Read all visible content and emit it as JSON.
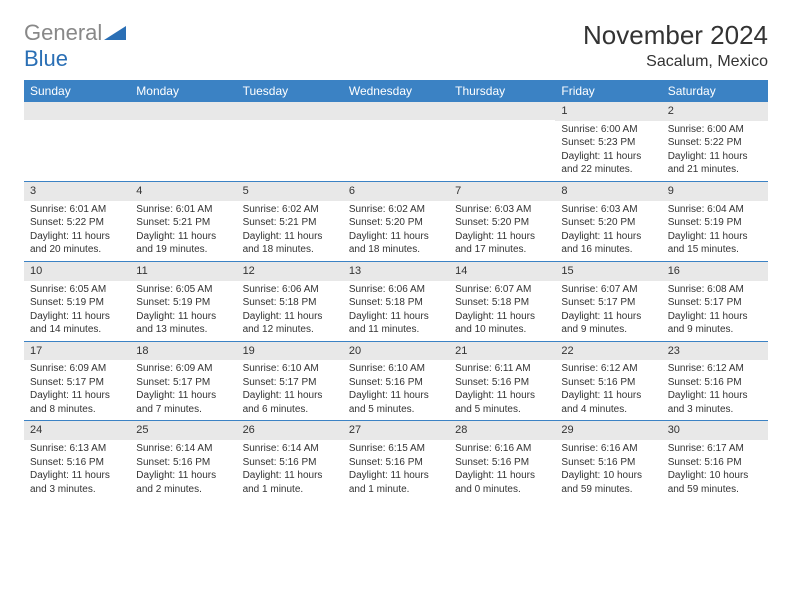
{
  "logo": {
    "gray": "General",
    "blue": "Blue"
  },
  "title": "November 2024",
  "location": "Sacalum, Mexico",
  "day_names": [
    "Sunday",
    "Monday",
    "Tuesday",
    "Wednesday",
    "Thursday",
    "Friday",
    "Saturday"
  ],
  "colors": {
    "header_bg": "#3b82c4",
    "header_text": "#ffffff",
    "daynum_bg": "#e8e8e8",
    "border": "#3b82c4",
    "logo_gray": "#888888",
    "logo_blue": "#2a6fb5"
  },
  "weeks": [
    [
      {
        "n": "",
        "sr": "",
        "ss": "",
        "dl": ""
      },
      {
        "n": "",
        "sr": "",
        "ss": "",
        "dl": ""
      },
      {
        "n": "",
        "sr": "",
        "ss": "",
        "dl": ""
      },
      {
        "n": "",
        "sr": "",
        "ss": "",
        "dl": ""
      },
      {
        "n": "",
        "sr": "",
        "ss": "",
        "dl": ""
      },
      {
        "n": "1",
        "sr": "Sunrise: 6:00 AM",
        "ss": "Sunset: 5:23 PM",
        "dl": "Daylight: 11 hours and 22 minutes."
      },
      {
        "n": "2",
        "sr": "Sunrise: 6:00 AM",
        "ss": "Sunset: 5:22 PM",
        "dl": "Daylight: 11 hours and 21 minutes."
      }
    ],
    [
      {
        "n": "3",
        "sr": "Sunrise: 6:01 AM",
        "ss": "Sunset: 5:22 PM",
        "dl": "Daylight: 11 hours and 20 minutes."
      },
      {
        "n": "4",
        "sr": "Sunrise: 6:01 AM",
        "ss": "Sunset: 5:21 PM",
        "dl": "Daylight: 11 hours and 19 minutes."
      },
      {
        "n": "5",
        "sr": "Sunrise: 6:02 AM",
        "ss": "Sunset: 5:21 PM",
        "dl": "Daylight: 11 hours and 18 minutes."
      },
      {
        "n": "6",
        "sr": "Sunrise: 6:02 AM",
        "ss": "Sunset: 5:20 PM",
        "dl": "Daylight: 11 hours and 18 minutes."
      },
      {
        "n": "7",
        "sr": "Sunrise: 6:03 AM",
        "ss": "Sunset: 5:20 PM",
        "dl": "Daylight: 11 hours and 17 minutes."
      },
      {
        "n": "8",
        "sr": "Sunrise: 6:03 AM",
        "ss": "Sunset: 5:20 PM",
        "dl": "Daylight: 11 hours and 16 minutes."
      },
      {
        "n": "9",
        "sr": "Sunrise: 6:04 AM",
        "ss": "Sunset: 5:19 PM",
        "dl": "Daylight: 11 hours and 15 minutes."
      }
    ],
    [
      {
        "n": "10",
        "sr": "Sunrise: 6:05 AM",
        "ss": "Sunset: 5:19 PM",
        "dl": "Daylight: 11 hours and 14 minutes."
      },
      {
        "n": "11",
        "sr": "Sunrise: 6:05 AM",
        "ss": "Sunset: 5:19 PM",
        "dl": "Daylight: 11 hours and 13 minutes."
      },
      {
        "n": "12",
        "sr": "Sunrise: 6:06 AM",
        "ss": "Sunset: 5:18 PM",
        "dl": "Daylight: 11 hours and 12 minutes."
      },
      {
        "n": "13",
        "sr": "Sunrise: 6:06 AM",
        "ss": "Sunset: 5:18 PM",
        "dl": "Daylight: 11 hours and 11 minutes."
      },
      {
        "n": "14",
        "sr": "Sunrise: 6:07 AM",
        "ss": "Sunset: 5:18 PM",
        "dl": "Daylight: 11 hours and 10 minutes."
      },
      {
        "n": "15",
        "sr": "Sunrise: 6:07 AM",
        "ss": "Sunset: 5:17 PM",
        "dl": "Daylight: 11 hours and 9 minutes."
      },
      {
        "n": "16",
        "sr": "Sunrise: 6:08 AM",
        "ss": "Sunset: 5:17 PM",
        "dl": "Daylight: 11 hours and 9 minutes."
      }
    ],
    [
      {
        "n": "17",
        "sr": "Sunrise: 6:09 AM",
        "ss": "Sunset: 5:17 PM",
        "dl": "Daylight: 11 hours and 8 minutes."
      },
      {
        "n": "18",
        "sr": "Sunrise: 6:09 AM",
        "ss": "Sunset: 5:17 PM",
        "dl": "Daylight: 11 hours and 7 minutes."
      },
      {
        "n": "19",
        "sr": "Sunrise: 6:10 AM",
        "ss": "Sunset: 5:17 PM",
        "dl": "Daylight: 11 hours and 6 minutes."
      },
      {
        "n": "20",
        "sr": "Sunrise: 6:10 AM",
        "ss": "Sunset: 5:16 PM",
        "dl": "Daylight: 11 hours and 5 minutes."
      },
      {
        "n": "21",
        "sr": "Sunrise: 6:11 AM",
        "ss": "Sunset: 5:16 PM",
        "dl": "Daylight: 11 hours and 5 minutes."
      },
      {
        "n": "22",
        "sr": "Sunrise: 6:12 AM",
        "ss": "Sunset: 5:16 PM",
        "dl": "Daylight: 11 hours and 4 minutes."
      },
      {
        "n": "23",
        "sr": "Sunrise: 6:12 AM",
        "ss": "Sunset: 5:16 PM",
        "dl": "Daylight: 11 hours and 3 minutes."
      }
    ],
    [
      {
        "n": "24",
        "sr": "Sunrise: 6:13 AM",
        "ss": "Sunset: 5:16 PM",
        "dl": "Daylight: 11 hours and 3 minutes."
      },
      {
        "n": "25",
        "sr": "Sunrise: 6:14 AM",
        "ss": "Sunset: 5:16 PM",
        "dl": "Daylight: 11 hours and 2 minutes."
      },
      {
        "n": "26",
        "sr": "Sunrise: 6:14 AM",
        "ss": "Sunset: 5:16 PM",
        "dl": "Daylight: 11 hours and 1 minute."
      },
      {
        "n": "27",
        "sr": "Sunrise: 6:15 AM",
        "ss": "Sunset: 5:16 PM",
        "dl": "Daylight: 11 hours and 1 minute."
      },
      {
        "n": "28",
        "sr": "Sunrise: 6:16 AM",
        "ss": "Sunset: 5:16 PM",
        "dl": "Daylight: 11 hours and 0 minutes."
      },
      {
        "n": "29",
        "sr": "Sunrise: 6:16 AM",
        "ss": "Sunset: 5:16 PM",
        "dl": "Daylight: 10 hours and 59 minutes."
      },
      {
        "n": "30",
        "sr": "Sunrise: 6:17 AM",
        "ss": "Sunset: 5:16 PM",
        "dl": "Daylight: 10 hours and 59 minutes."
      }
    ]
  ]
}
